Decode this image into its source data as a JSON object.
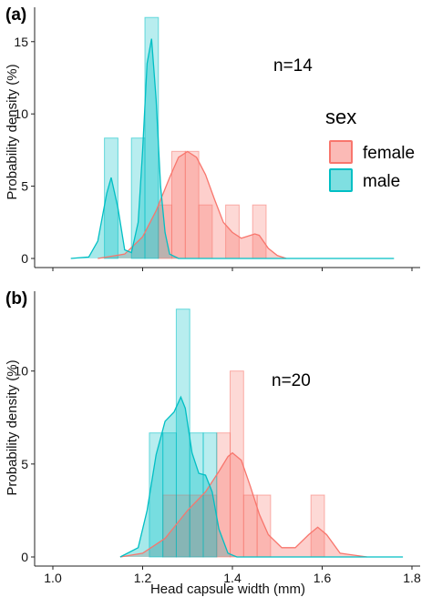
{
  "figure": {
    "xlabel": "Head capsule width (mm)",
    "legend": {
      "title": "sex",
      "position": "right",
      "items": [
        {
          "label": "female",
          "color": "#F8766D"
        },
        {
          "label": "male",
          "color": "#00BFC4"
        }
      ]
    }
  },
  "chart_data": [
    {
      "type": "bar",
      "panel_tag": "(a)",
      "annotation": "n=14",
      "ylabel": "Probability density (%)",
      "xlim": [
        1.0,
        1.8
      ],
      "ylim": [
        0,
        17
      ],
      "yticks": [
        0,
        5,
        10,
        15
      ],
      "grid": false,
      "bin_width": 0.03,
      "series": [
        {
          "name": "male",
          "color": "#00BFC4",
          "bins": [
            {
              "x": 1.13,
              "value": 8.33
            },
            {
              "x": 1.19,
              "value": 8.33
            },
            {
              "x": 1.22,
              "value": 16.67
            }
          ],
          "density": [
            [
              1.04,
              0
            ],
            [
              1.08,
              0.1
            ],
            [
              1.1,
              1.2
            ],
            [
              1.12,
              4.5
            ],
            [
              1.13,
              5.6
            ],
            [
              1.145,
              3.5
            ],
            [
              1.16,
              0.6
            ],
            [
              1.175,
              0.4
            ],
            [
              1.19,
              2.5
            ],
            [
              1.2,
              7.5
            ],
            [
              1.21,
              13.5
            ],
            [
              1.22,
              15.2
            ],
            [
              1.23,
              11
            ],
            [
              1.24,
              5
            ],
            [
              1.25,
              1.8
            ],
            [
              1.26,
              0.3
            ],
            [
              1.28,
              0
            ],
            [
              1.76,
              0
            ]
          ]
        },
        {
          "name": "female",
          "color": "#F8766D",
          "bins": [
            {
              "x": 1.25,
              "value": 3.7
            },
            {
              "x": 1.28,
              "value": 7.41
            },
            {
              "x": 1.31,
              "value": 7.41
            },
            {
              "x": 1.34,
              "value": 3.7
            },
            {
              "x": 1.4,
              "value": 3.7
            },
            {
              "x": 1.46,
              "value": 3.7
            }
          ],
          "density": [
            [
              1.1,
              0
            ],
            [
              1.16,
              0.3
            ],
            [
              1.2,
              1.5
            ],
            [
              1.23,
              3.3
            ],
            [
              1.26,
              5.6
            ],
            [
              1.28,
              7
            ],
            [
              1.3,
              7.4
            ],
            [
              1.32,
              7
            ],
            [
              1.34,
              5.8
            ],
            [
              1.36,
              4.1
            ],
            [
              1.38,
              2.5
            ],
            [
              1.4,
              1.8
            ],
            [
              1.42,
              1.4
            ],
            [
              1.44,
              1.6
            ],
            [
              1.45,
              1.7
            ],
            [
              1.46,
              1.6
            ],
            [
              1.48,
              0.7
            ],
            [
              1.5,
              0.2
            ],
            [
              1.52,
              0
            ]
          ]
        }
      ]
    },
    {
      "type": "bar",
      "panel_tag": "(b)",
      "annotation": "n=20",
      "ylabel": "Probability density (%)",
      "xlim": [
        1.0,
        1.8
      ],
      "ylim": [
        0,
        14
      ],
      "yticks": [
        0,
        5,
        10
      ],
      "xticks": [
        1.0,
        1.2,
        1.4,
        1.6,
        1.8
      ],
      "grid": false,
      "bin_width": 0.03,
      "series": [
        {
          "name": "male",
          "color": "#00BFC4",
          "bins": [
            {
              "x": 1.23,
              "value": 6.67
            },
            {
              "x": 1.26,
              "value": 6.67
            },
            {
              "x": 1.29,
              "value": 13.33
            },
            {
              "x": 1.32,
              "value": 6.67
            },
            {
              "x": 1.35,
              "value": 6.67
            }
          ],
          "density": [
            [
              1.15,
              0
            ],
            [
              1.19,
              0.5
            ],
            [
              1.21,
              2.5
            ],
            [
              1.23,
              5.5
            ],
            [
              1.25,
              7.3
            ],
            [
              1.27,
              7.8
            ],
            [
              1.285,
              8.6
            ],
            [
              1.295,
              8
            ],
            [
              1.31,
              5.6
            ],
            [
              1.325,
              4.5
            ],
            [
              1.34,
              4.4
            ],
            [
              1.355,
              3.5
            ],
            [
              1.37,
              1.5
            ],
            [
              1.39,
              0.2
            ],
            [
              1.41,
              0
            ],
            [
              1.78,
              0
            ]
          ]
        },
        {
          "name": "female",
          "color": "#F8766D",
          "bins": [
            {
              "x": 1.26,
              "value": 3.33
            },
            {
              "x": 1.29,
              "value": 3.33
            },
            {
              "x": 1.32,
              "value": 3.33
            },
            {
              "x": 1.35,
              "value": 3.33
            },
            {
              "x": 1.38,
              "value": 6.67
            },
            {
              "x": 1.41,
              "value": 10.0
            },
            {
              "x": 1.44,
              "value": 3.33
            },
            {
              "x": 1.47,
              "value": 3.33
            },
            {
              "x": 1.59,
              "value": 3.33
            }
          ],
          "density": [
            [
              1.15,
              0
            ],
            [
              1.2,
              0.2
            ],
            [
              1.25,
              1
            ],
            [
              1.3,
              2.5
            ],
            [
              1.34,
              3.5
            ],
            [
              1.37,
              4.6
            ],
            [
              1.39,
              5.4
            ],
            [
              1.4,
              5.6
            ],
            [
              1.42,
              5.2
            ],
            [
              1.44,
              3.8
            ],
            [
              1.46,
              2.3
            ],
            [
              1.48,
              1.2
            ],
            [
              1.51,
              0.5
            ],
            [
              1.54,
              0.5
            ],
            [
              1.57,
              1.2
            ],
            [
              1.59,
              1.6
            ],
            [
              1.61,
              1.2
            ],
            [
              1.64,
              0.2
            ],
            [
              1.7,
              0
            ]
          ]
        }
      ]
    }
  ]
}
